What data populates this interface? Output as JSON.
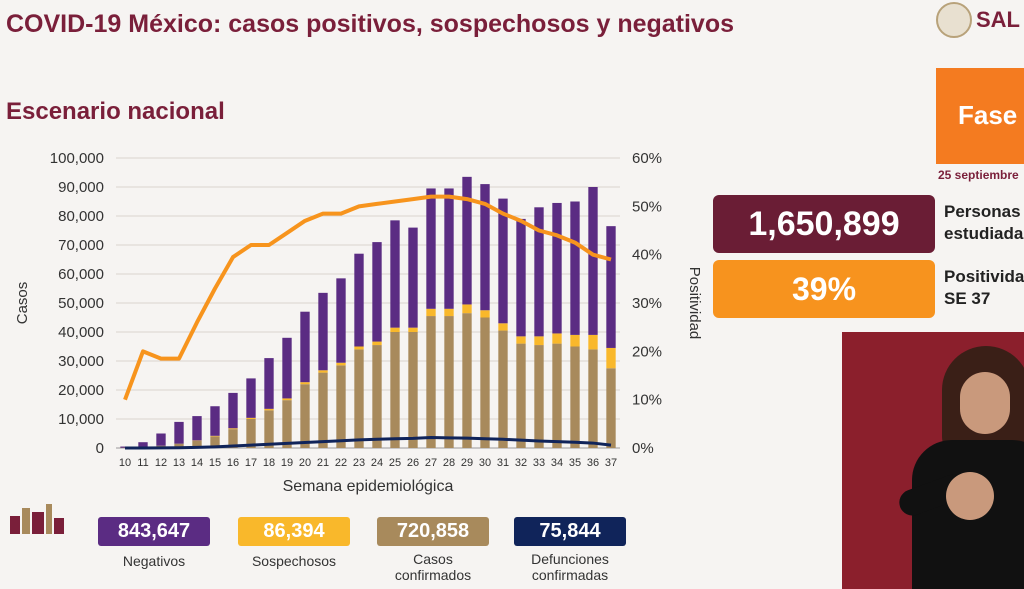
{
  "header": {
    "title": "COVID-19 México: casos positivos, sospechosos y negativos",
    "subtitle": "Escenario nacional",
    "logo_text": "SAL"
  },
  "phase": {
    "label": "Fase",
    "date": "25 septiembre"
  },
  "boxes": {
    "studied": {
      "value": "1,650,899",
      "label_line1": "Personas",
      "label_line2": "estudiadas"
    },
    "positivity": {
      "value": "39%",
      "label_line1": "Positividad",
      "label_line2": "SE 37"
    }
  },
  "summary": {
    "negatives": {
      "value": "843,647",
      "label": "Negativos",
      "color": "#5b2c83"
    },
    "suspects": {
      "value": "86,394",
      "label": "Sospechosos",
      "color": "#f9b82b"
    },
    "confirmed": {
      "value": "720,858",
      "label_line1": "Casos",
      "label_line2": "confirmados",
      "color": "#a88a5c"
    },
    "deaths": {
      "value": "75,844",
      "label_line1": "Defunciones",
      "label_line2": "confirmadas",
      "color": "#10245a"
    }
  },
  "colors": {
    "negatives": "#5b2c83",
    "suspects": "#f9b82b",
    "confirmed": "#a88a5c",
    "deaths": "#10245a",
    "positivity": "#f7941d"
  },
  "chart_data": {
    "type": "bar",
    "stacked": true,
    "xlabel": "Semana epidemiológica",
    "ylabel": "Casos",
    "y2label": "Positividad",
    "ylim": [
      0,
      100000
    ],
    "y2lim": [
      0,
      60
    ],
    "yticks": [
      "0",
      "10,000",
      "20,000",
      "30,000",
      "40,000",
      "50,000",
      "60,000",
      "70,000",
      "80,000",
      "90,000",
      "100,000"
    ],
    "y2ticks": [
      "0%",
      "10%",
      "20%",
      "30%",
      "40%",
      "50%",
      "60%"
    ],
    "categories": [
      "10",
      "11",
      "12",
      "13",
      "14",
      "15",
      "16",
      "17",
      "18",
      "19",
      "20",
      "21",
      "22",
      "23",
      "24",
      "25",
      "26",
      "27",
      "28",
      "29",
      "30",
      "31",
      "32",
      "33",
      "34",
      "35",
      "36",
      "37"
    ],
    "series": [
      {
        "name": "Casos confirmados",
        "values": [
          100,
          300,
          800,
          1500,
          2500,
          4000,
          6500,
          10000,
          13000,
          16500,
          22000,
          26000,
          28500,
          34000,
          35500,
          40000,
          40000,
          45500,
          45500,
          46500,
          45000,
          40500,
          36000,
          35500,
          36000,
          35000,
          34000,
          27500
        ]
      },
      {
        "name": "Sospechosos",
        "values": [
          0,
          0,
          0,
          0,
          100,
          200,
          300,
          400,
          500,
          600,
          700,
          800,
          900,
          1000,
          1200,
          1500,
          1500,
          2500,
          2500,
          3000,
          2500,
          2500,
          2500,
          3000,
          3500,
          4000,
          5000,
          7000
        ]
      },
      {
        "name": "Negativos",
        "values": [
          400,
          1700,
          4200,
          7500,
          8400,
          10200,
          12200,
          13600,
          17500,
          20900,
          24300,
          26700,
          29100,
          32000,
          34300,
          37000,
          34500,
          41500,
          41500,
          44000,
          43500,
          43000,
          40500,
          44500,
          45000,
          46000,
          51000,
          42000
        ]
      }
    ],
    "deaths": [
      0,
      20,
      50,
      100,
      200,
      400,
      700,
      1000,
      1300,
      1600,
      1900,
      2200,
      2500,
      2800,
      3000,
      3200,
      3300,
      3600,
      3500,
      3400,
      3200,
      3000,
      2700,
      2400,
      2200,
      2000,
      1700,
      1000
    ],
    "positivity": [
      10,
      20,
      18.5,
      18.5,
      26,
      33,
      39.5,
      42,
      42,
      44.5,
      47,
      48.5,
      48.5,
      50,
      50.5,
      51,
      51.5,
      52,
      52,
      51.5,
      50.5,
      48.5,
      47,
      45,
      44,
      42.5,
      40,
      39
    ]
  }
}
